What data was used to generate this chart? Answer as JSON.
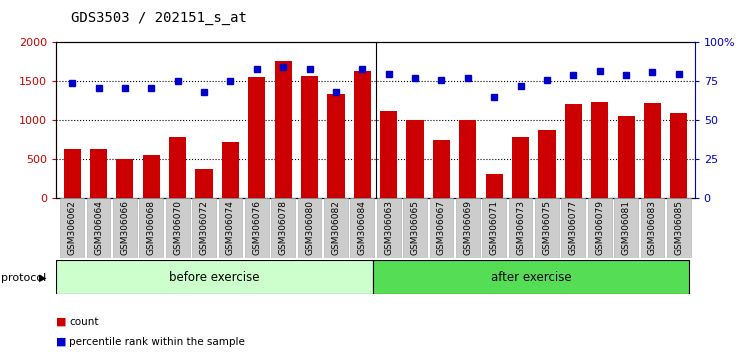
{
  "title": "GDS3503 / 202151_s_at",
  "categories": [
    "GSM306062",
    "GSM306064",
    "GSM306066",
    "GSM306068",
    "GSM306070",
    "GSM306072",
    "GSM306074",
    "GSM306076",
    "GSM306078",
    "GSM306080",
    "GSM306082",
    "GSM306084",
    "GSM306063",
    "GSM306065",
    "GSM306067",
    "GSM306069",
    "GSM306071",
    "GSM306073",
    "GSM306075",
    "GSM306077",
    "GSM306079",
    "GSM306081",
    "GSM306083",
    "GSM306085"
  ],
  "counts": [
    630,
    630,
    500,
    550,
    790,
    380,
    720,
    1560,
    1760,
    1570,
    1340,
    1640,
    1120,
    1000,
    750,
    1010,
    310,
    780,
    870,
    1210,
    1230,
    1050,
    1220,
    1100
  ],
  "percentiles": [
    74,
    71,
    71,
    71,
    75,
    68,
    75,
    83,
    84,
    83,
    68,
    83,
    80,
    77,
    76,
    77,
    65,
    72,
    76,
    79,
    82,
    79,
    81,
    80
  ],
  "bar_color": "#cc0000",
  "dot_color": "#0000cc",
  "before_count": 12,
  "after_count": 12,
  "before_label": "before exercise",
  "after_label": "after exercise",
  "before_color": "#ccffcc",
  "after_color": "#55dd55",
  "protocol_label": "protocol",
  "legend_count_label": "count",
  "legend_pct_label": "percentile rank within the sample",
  "ylim_left": [
    0,
    2000
  ],
  "ylim_right": [
    0,
    100
  ],
  "yticks_left": [
    0,
    500,
    1000,
    1500,
    2000
  ],
  "yticks_right": [
    0,
    25,
    50,
    75,
    100
  ],
  "yticklabels_left": [
    "0",
    "500",
    "1000",
    "1500",
    "2000"
  ],
  "yticklabels_right": [
    "0",
    "25",
    "50",
    "75",
    "100%"
  ],
  "grid_values": [
    500,
    1000,
    1500
  ],
  "background_color": "#ffffff",
  "tick_bg_color": "#cccccc",
  "tick_edge_color": "#aaaaaa"
}
